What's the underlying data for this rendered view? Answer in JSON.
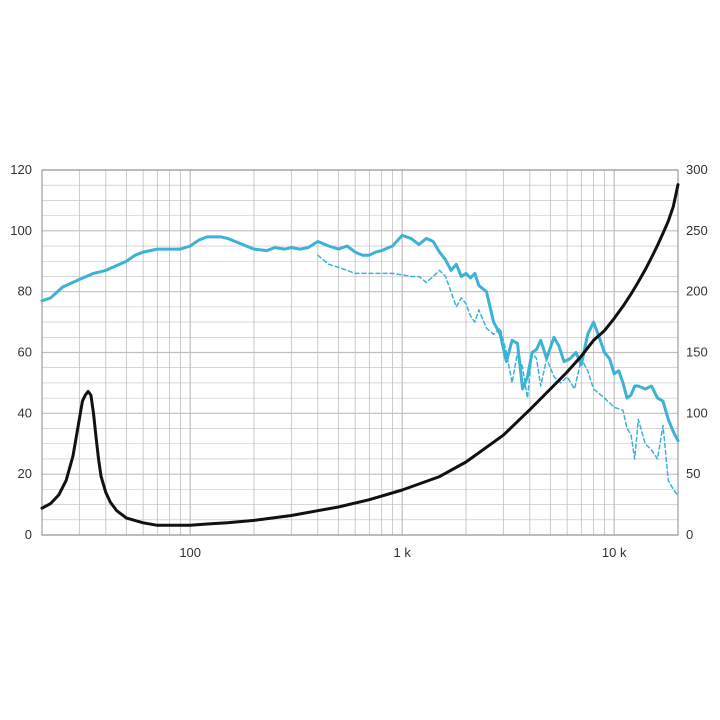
{
  "chart_data": {
    "type": "line",
    "x_scale": "log",
    "xlim": [
      20,
      20000
    ],
    "ylim_left": [
      0,
      120
    ],
    "ylim_right": [
      0,
      300
    ],
    "grid": true,
    "x_tick_labels": [
      "100",
      "1 k",
      "10 k"
    ],
    "y_left_tick_labels": [
      "0",
      "20",
      "40",
      "60",
      "80",
      "100",
      "120"
    ],
    "y_right_tick_labels": [
      "0",
      "50",
      "100",
      "150",
      "200",
      "250",
      "300"
    ],
    "colors": {
      "response": "#3bb2d6",
      "impedance": "#111111",
      "grid": "#bfbfbf"
    },
    "series": [
      {
        "style": "solid",
        "axis": "left",
        "color": "#3bb2d6",
        "x": [
          20,
          22,
          25,
          30,
          35,
          40,
          50,
          55,
          60,
          70,
          80,
          90,
          100,
          110,
          120,
          140,
          150,
          170,
          200,
          230,
          250,
          280,
          300,
          330,
          360,
          400,
          450,
          500,
          550,
          600,
          650,
          700,
          750,
          800,
          900,
          1000,
          1100,
          1200,
          1300,
          1400,
          1500,
          1600,
          1700,
          1800,
          1900,
          2000,
          2100,
          2200,
          2300,
          2500,
          2700,
          2900,
          3100,
          3300,
          3500,
          3700,
          3900,
          4100,
          4300,
          4500,
          4800,
          5200,
          5500,
          5800,
          6200,
          6600,
          7000,
          7500,
          8000,
          8500,
          9000,
          9500,
          10000,
          10500,
          11000,
          11500,
          12000,
          12500,
          13000,
          14000,
          15000,
          16000,
          17000,
          18000,
          19000,
          20000
        ],
        "y": [
          77,
          78,
          81.5,
          84,
          86,
          87,
          90,
          92,
          93,
          94,
          94,
          94,
          95,
          97,
          98,
          98,
          97.5,
          96,
          94,
          93.5,
          94.5,
          94,
          94.5,
          94,
          94.5,
          96.5,
          95,
          94,
          95,
          93,
          92,
          92,
          93,
          93.5,
          95,
          98.5,
          97.5,
          95.5,
          97.5,
          96.5,
          93,
          90.5,
          87,
          89,
          85,
          86,
          84.5,
          86,
          82,
          80,
          70,
          66,
          57,
          64,
          63,
          48,
          52,
          60,
          61,
          64,
          58,
          65,
          62,
          57,
          58,
          60,
          56,
          66,
          70,
          65,
          60,
          58,
          53,
          54,
          50,
          45,
          46,
          49,
          49,
          48,
          49,
          45,
          44,
          38,
          34,
          31
        ]
      },
      {
        "style": "dashed",
        "axis": "left",
        "color": "#3bb2d6",
        "x": [
          400,
          450,
          500,
          550,
          600,
          650,
          700,
          800,
          900,
          1000,
          1100,
          1200,
          1300,
          1400,
          1500,
          1600,
          1700,
          1800,
          1900,
          2000,
          2100,
          2200,
          2300,
          2500,
          2700,
          2900,
          3100,
          3300,
          3500,
          3700,
          3900,
          4100,
          4300,
          4500,
          4800,
          5200,
          5600,
          6000,
          6500,
          7000,
          7500,
          8000,
          9000,
          10000,
          11000,
          11500,
          12000,
          12500,
          13000,
          14000,
          15000,
          16000,
          17000,
          18000,
          19000,
          20000
        ],
        "y": [
          92,
          89,
          88,
          87,
          86,
          86,
          86,
          86,
          86,
          85.5,
          85,
          85,
          83,
          85,
          87,
          85,
          80,
          75,
          78,
          76,
          72,
          70,
          74,
          68,
          66,
          68,
          60,
          50,
          60,
          55,
          45,
          60,
          58,
          49,
          58,
          52,
          50,
          52,
          48,
          58,
          54,
          48,
          45,
          42,
          41,
          35,
          33,
          25,
          38,
          30,
          28,
          25,
          36,
          18,
          15,
          13
        ]
      },
      {
        "style": "solid",
        "axis": "right",
        "color": "#111111",
        "x": [
          20,
          22,
          24,
          26,
          28,
          30,
          31,
          32,
          33,
          34,
          35,
          36,
          37,
          38,
          40,
          42,
          45,
          50,
          60,
          70,
          80,
          100,
          120,
          150,
          200,
          300,
          400,
          500,
          700,
          1000,
          1500,
          2000,
          3000,
          4000,
          5000,
          6000,
          7000,
          8000,
          9000,
          10000,
          11000,
          12000,
          13000,
          14000,
          15000,
          16000,
          17000,
          18000,
          19000,
          20000
        ],
        "y": [
          22,
          26,
          33,
          45,
          65,
          95,
          110,
          115,
          118,
          115,
          100,
          80,
          62,
          48,
          35,
          27,
          20,
          14,
          10,
          8,
          8,
          8,
          9,
          10,
          12,
          16,
          20,
          23,
          29,
          37,
          48,
          60,
          82,
          103,
          120,
          134,
          147,
          160,
          168,
          178,
          188,
          198,
          208,
          218,
          228,
          238,
          248,
          258,
          270,
          288
        ]
      }
    ]
  }
}
